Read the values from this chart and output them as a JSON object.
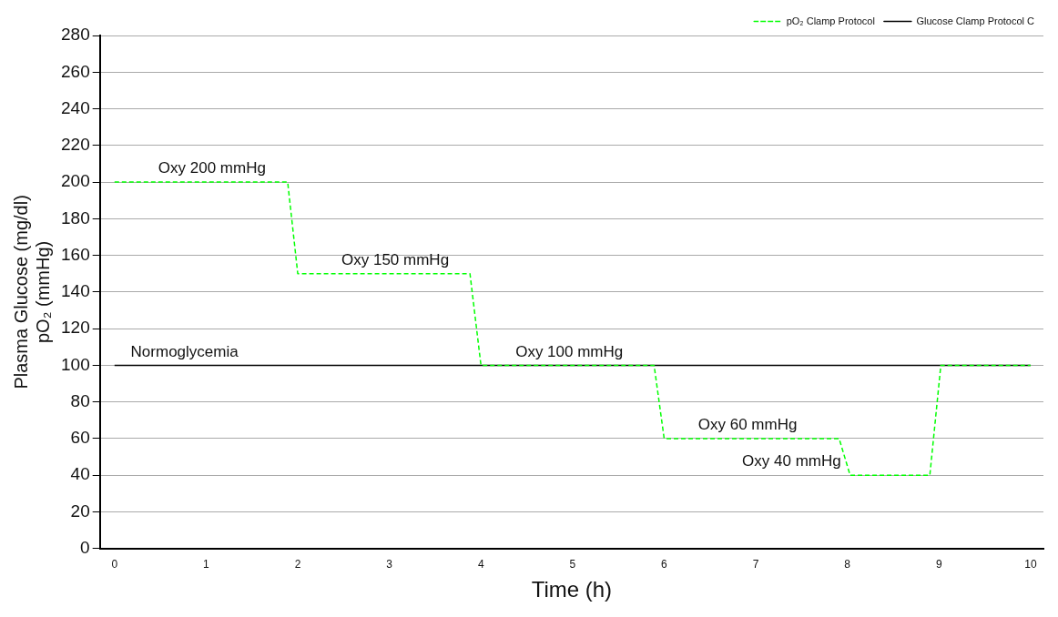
{
  "chart_data": {
    "type": "line",
    "xlabel": "Time (h)",
    "ylabel": "Plasma Glucose (mg/dl)\npO₂ (mmHg)",
    "xlim": [
      -0.16,
      10.14
    ],
    "xticks": [
      0,
      1,
      2,
      3,
      4,
      5,
      6,
      7,
      8,
      9,
      10
    ],
    "ylim": [
      0,
      280
    ],
    "yticks": [
      0,
      20,
      40,
      60,
      80,
      100,
      120,
      140,
      160,
      180,
      200,
      220,
      240,
      260,
      280
    ],
    "grid": "y",
    "legend": "top right",
    "marker": "none",
    "series": [
      {
        "name": "Glucose Clamp Protocol C",
        "color": "#000000",
        "line_style": "solid",
        "x": [
          0,
          10
        ],
        "values": [
          100,
          100
        ]
      },
      {
        "name": "pO₂ Clamp Protocol",
        "color": "#00ff00",
        "line_style": "dashed",
        "x": [
          0,
          1.89,
          2.0,
          3.88,
          4.0,
          5.89,
          6.0,
          7.91,
          8.03,
          8.9,
          9.02,
          10
        ],
        "values": [
          200,
          200,
          150,
          150,
          100,
          100,
          60,
          60,
          40,
          40,
          100,
          100
        ]
      }
    ],
    "annotations": [
      {
        "text": "Oxy 200 mmHg",
        "x": 1.75,
        "y": 200
      },
      {
        "text": "Oxy 150 mmHg",
        "x": 3.75,
        "y": 150
      },
      {
        "text": "Oxy 100 mmHg",
        "x": 5.65,
        "y": 100
      },
      {
        "text": "Oxy 60 mmHg",
        "x": 7.55,
        "y": 60
      },
      {
        "text": "Oxy 40 mmHg",
        "x": 8.03,
        "y": 40
      },
      {
        "text": "Normoglycemia",
        "x": 1.45,
        "y": 100
      }
    ]
  }
}
